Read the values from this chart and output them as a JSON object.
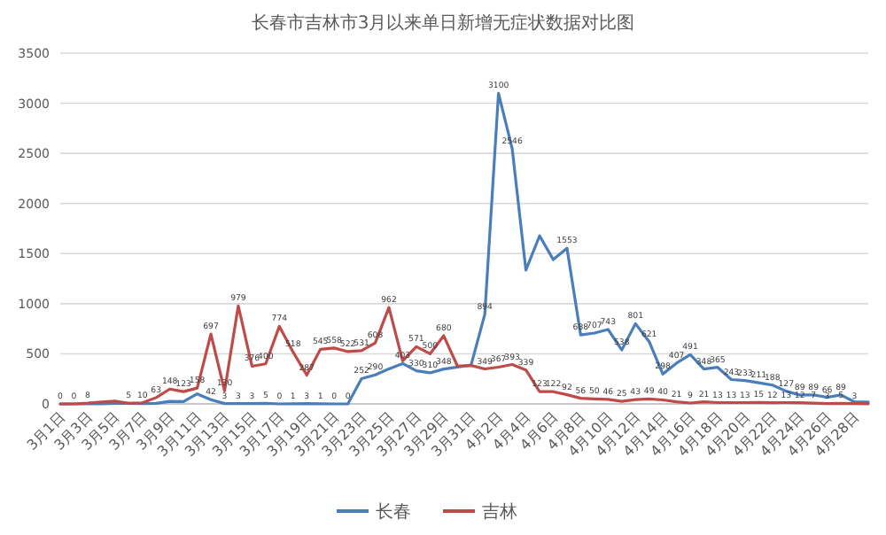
{
  "chart_data": {
    "type": "line",
    "title": "长春市吉林市3月以来单日新增无症状数据对比图",
    "categories": [
      "3月1日",
      null,
      "3月3日",
      null,
      "3月5日",
      null,
      "3月7日",
      null,
      "3月9日",
      null,
      "3月11日",
      null,
      "3月13日",
      null,
      "3月15日",
      null,
      "3月17日",
      null,
      "3月19日",
      null,
      "3月21日",
      null,
      "3月23日",
      null,
      "3月25日",
      null,
      "3月27日",
      null,
      "3月29日",
      null,
      "3月31日",
      null,
      "4月2日",
      null,
      "4月4日",
      null,
      "4月6日",
      null,
      "4月8日",
      null,
      "4月10日",
      null,
      "4月12日",
      null,
      "4月14日",
      null,
      "4月16日",
      null,
      "4月18日",
      null,
      "4月20日",
      null,
      "4月22日",
      null,
      "4月24日",
      null,
      "4月26日",
      null,
      "4月28日",
      null
    ],
    "series": [
      {
        "name": "长春",
        "color": "#4a7ebb",
        "values": [
          0,
          0,
          0,
          2,
          5,
          5,
          3,
          5,
          25,
          23,
          100,
          42,
          3,
          3,
          3,
          5,
          0,
          1,
          3,
          1,
          0,
          0,
          252,
          290,
          350,
          403,
          330,
          310,
          348,
          368,
          388,
          894,
          3100,
          2546,
          1335,
          1677,
          1440,
          1553,
          688,
          707,
          743,
          538,
          801,
          621,
          298,
          407,
          491,
          348,
          365,
          243,
          233,
          211,
          188,
          127,
          89,
          89,
          66,
          89,
          20,
          20
        ],
        "value_labels": [
          null,
          null,
          null,
          null,
          null,
          null,
          null,
          null,
          null,
          null,
          null,
          "42",
          "3",
          "3",
          "3",
          "5",
          "0",
          "1",
          "3",
          "1",
          "0",
          "0",
          "252",
          "290",
          null,
          "403",
          "330",
          "310",
          "348",
          null,
          null,
          "894",
          "3100",
          "2546",
          null,
          null,
          null,
          "1553",
          "688",
          "707",
          "743",
          "538",
          "801",
          "621",
          "298",
          "407",
          "491",
          "348",
          "365",
          "243",
          "233",
          "211",
          "188",
          "127",
          "89",
          "89",
          "66",
          "89",
          null,
          null
        ]
      },
      {
        "name": "吉林",
        "color": "#be4b48",
        "values": [
          0,
          0,
          8,
          20,
          27,
          5,
          10,
          63,
          148,
          123,
          158,
          697,
          130,
          979,
          376,
          400,
          774,
          518,
          287,
          545,
          558,
          522,
          531,
          608,
          962,
          429,
          571,
          500,
          680,
          378,
          383,
          349,
          367,
          393,
          339,
          123,
          122,
          92,
          56,
          50,
          46,
          25,
          43,
          49,
          40,
          21,
          9,
          21,
          13,
          13,
          13,
          15,
          12,
          13,
          12,
          7,
          3,
          5,
          3,
          2
        ],
        "value_labels": [
          "0",
          "0",
          "8",
          null,
          null,
          "5",
          "10",
          "63",
          "148",
          "123",
          "158",
          "697",
          "130",
          "979",
          "376",
          "400",
          "774",
          "518",
          "287",
          "545",
          "558",
          "522",
          "531",
          "608",
          "962",
          null,
          "571",
          "500",
          "680",
          null,
          null,
          "349",
          "367",
          "393",
          "339",
          "123",
          "122",
          "92",
          "56",
          "50",
          "46",
          "25",
          "43",
          "49",
          "40",
          "21",
          "9",
          "21",
          "13",
          "13",
          "13",
          "15",
          "12",
          "13",
          "12",
          "7",
          "3",
          "5",
          "3",
          null
        ]
      }
    ],
    "ylim": [
      0,
      3500
    ],
    "yticks": [
      0,
      500,
      1000,
      1500,
      2000,
      2500,
      3000,
      3500
    ],
    "grid": "y",
    "legend": "bottom"
  }
}
